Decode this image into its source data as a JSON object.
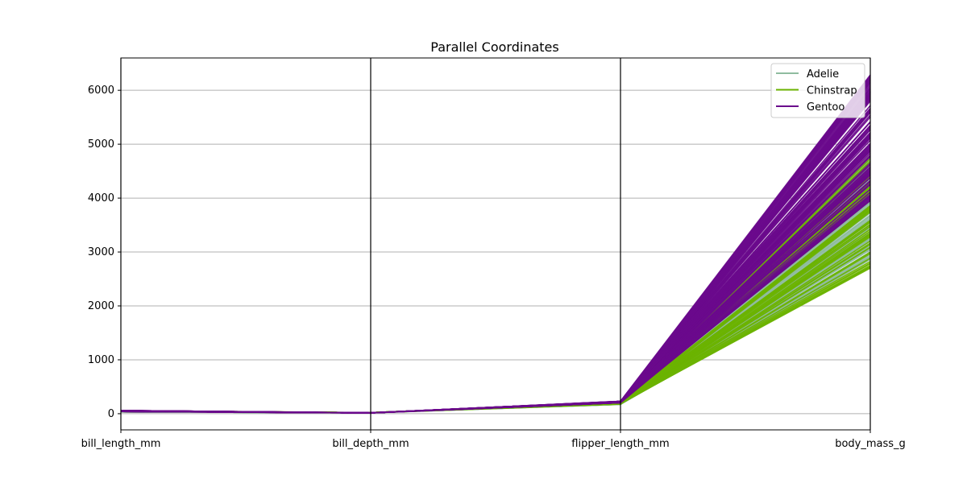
{
  "chart_data": {
    "type": "parallel_coordinates",
    "title": "Parallel Coordinates",
    "axes": [
      "bill_length_mm",
      "bill_depth_mm",
      "flipper_length_mm",
      "body_mass_g"
    ],
    "ylim": [
      -300,
      6600
    ],
    "yticks": [
      0,
      1000,
      2000,
      3000,
      4000,
      5000,
      6000
    ],
    "grid": true,
    "legend_position": "top-right",
    "series": [
      {
        "name": "Adelie",
        "color": "#8fbc9f",
        "bill_length_mm": [
          32,
          46
        ],
        "bill_depth_mm": [
          15.5,
          21.5
        ],
        "flipper_length_mm": [
          172,
          210
        ],
        "body_mass_g": [
          2850,
          4775
        ]
      },
      {
        "name": "Chinstrap",
        "color": "#6bb300",
        "bill_length_mm": [
          40,
          58
        ],
        "bill_depth_mm": [
          16.4,
          20.8
        ],
        "flipper_length_mm": [
          178,
          212
        ],
        "body_mass_g": [
          2700,
          4800
        ]
      },
      {
        "name": "Gentoo",
        "color": "#6a0a8c",
        "bill_length_mm": [
          40,
          60
        ],
        "bill_depth_mm": [
          13,
          17.5
        ],
        "flipper_length_mm": [
          203,
          231
        ],
        "body_mass_g": [
          3950,
          6300
        ]
      }
    ]
  }
}
